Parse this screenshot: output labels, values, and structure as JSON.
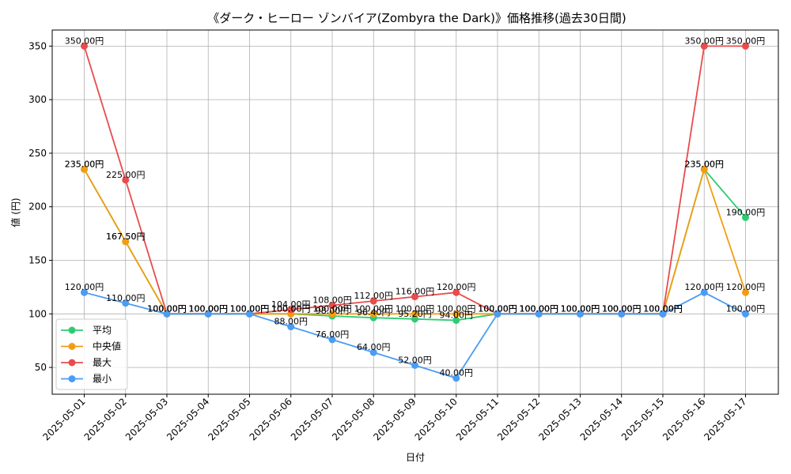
{
  "chart_data": {
    "type": "line",
    "title": "《ダーク・ヒーロー ゾンバイア(Zombyra the Dark)》価格推移(過去30日間)",
    "xlabel": "日付",
    "ylabel": "値 (円)",
    "categories": [
      "2025-05-01",
      "2025-05-02",
      "2025-05-03",
      "2025-05-04",
      "2025-05-05",
      "2025-05-06",
      "2025-05-07",
      "2025-05-08",
      "2025-05-09",
      "2025-05-10",
      "2025-05-11",
      "2025-05-12",
      "2025-05-13",
      "2025-05-14",
      "2025-05-15",
      "2025-05-16",
      "2025-05-17"
    ],
    "yticks": [
      "50",
      "100",
      "150",
      "200",
      "250",
      "300",
      "350"
    ],
    "ylim": [
      25,
      365
    ],
    "grid": true,
    "legend_position": "lower-left",
    "unit_suffix": "円",
    "series": [
      {
        "name": "平均",
        "color": "#2ecc71",
        "values": [
          235,
          167.5,
          100,
          100,
          100,
          100,
          98,
          96.4,
          95.2,
          94,
          100,
          100,
          100,
          100,
          100,
          235,
          190
        ],
        "labels": [
          "235.00円",
          "167.50円",
          "100.00円",
          "100.00円",
          "100.00円",
          "100.00円",
          "98.00円",
          "96.40円",
          "95.20円",
          "94.00円",
          "100.00円",
          "100.00円",
          "100.00円",
          "100.00円",
          "100.00円",
          "235.00円",
          "190.00円"
        ]
      },
      {
        "name": "中央値",
        "color": "#f39c12",
        "values": [
          235,
          167.5,
          100,
          100,
          100,
          100,
          100,
          100,
          100,
          100,
          100,
          100,
          100,
          100,
          100,
          235,
          120
        ],
        "labels": [
          "235.00円",
          "167.50円",
          "100.00円",
          "100.00円",
          "100.00円",
          "100.00円",
          "100.00円",
          "100.00円",
          "100.00円",
          "100.00円",
          "100.00円",
          "100.00円",
          "100.00円",
          "100.00円",
          "100.00円",
          "235.00円",
          "120.00円"
        ]
      },
      {
        "name": "最大",
        "color": "#e84c4c",
        "values": [
          350,
          225,
          100,
          100,
          100,
          104,
          108,
          112,
          116,
          120,
          100,
          100,
          100,
          100,
          100,
          350,
          350
        ],
        "labels": [
          "350.00円",
          "225.00円",
          "100.00円",
          "100.00円",
          "100.00円",
          "104.00円",
          "108.00円",
          "112.00円",
          "116.00円",
          "120.00円",
          "100.00円",
          "100.00円",
          "100.00円",
          "100.00円",
          "100.00円",
          "350.00円",
          "350.00円"
        ]
      },
      {
        "name": "最小",
        "color": "#4a9cf5",
        "values": [
          120,
          110,
          100,
          100,
          100,
          88,
          76,
          64,
          52,
          40,
          100,
          100,
          100,
          100,
          100,
          120,
          100
        ],
        "labels": [
          "120.00円",
          "110.00円",
          "100.00円",
          "100.00円",
          "100.00円",
          "88.00円",
          "76.00円",
          "64.00円",
          "52.00円",
          "40.00円",
          "100.00円",
          "100.00円",
          "100.00円",
          "100.00円",
          "100.00円",
          "120.00円",
          "100.00円"
        ]
      }
    ]
  }
}
